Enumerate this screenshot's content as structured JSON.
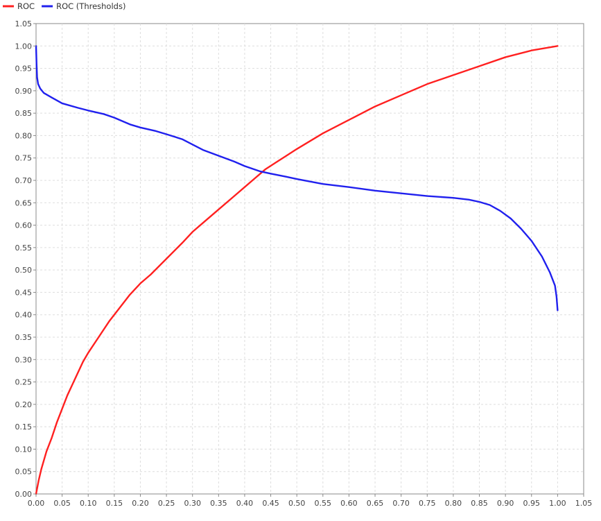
{
  "chart_data": {
    "type": "line",
    "title": "",
    "xlabel": "",
    "ylabel": "",
    "xlim": [
      0,
      1.05
    ],
    "ylim": [
      0,
      1.05
    ],
    "x_ticks": [
      "0.00",
      "0.05",
      "0.10",
      "0.15",
      "0.20",
      "0.25",
      "0.30",
      "0.35",
      "0.40",
      "0.45",
      "0.50",
      "0.55",
      "0.60",
      "0.65",
      "0.70",
      "0.75",
      "0.80",
      "0.85",
      "0.90",
      "0.95",
      "1.00",
      "1.05"
    ],
    "y_ticks": [
      "0.00",
      "0.05",
      "0.10",
      "0.15",
      "0.20",
      "0.25",
      "0.30",
      "0.35",
      "0.40",
      "0.45",
      "0.50",
      "0.55",
      "0.60",
      "0.65",
      "0.70",
      "0.75",
      "0.80",
      "0.85",
      "0.90",
      "0.95",
      "1.00",
      "1.05"
    ],
    "grid": true,
    "legend_position": "top-left",
    "series": [
      {
        "name": "ROC",
        "color": "#ff2020",
        "points": [
          [
            0.0,
            0.0
          ],
          [
            0.005,
            0.03
          ],
          [
            0.01,
            0.055
          ],
          [
            0.02,
            0.095
          ],
          [
            0.03,
            0.125
          ],
          [
            0.04,
            0.16
          ],
          [
            0.05,
            0.19
          ],
          [
            0.06,
            0.22
          ],
          [
            0.07,
            0.245
          ],
          [
            0.08,
            0.27
          ],
          [
            0.09,
            0.295
          ],
          [
            0.1,
            0.315
          ],
          [
            0.12,
            0.35
          ],
          [
            0.14,
            0.385
          ],
          [
            0.16,
            0.415
          ],
          [
            0.18,
            0.445
          ],
          [
            0.2,
            0.47
          ],
          [
            0.22,
            0.49
          ],
          [
            0.25,
            0.525
          ],
          [
            0.28,
            0.56
          ],
          [
            0.3,
            0.585
          ],
          [
            0.32,
            0.605
          ],
          [
            0.35,
            0.635
          ],
          [
            0.38,
            0.665
          ],
          [
            0.4,
            0.685
          ],
          [
            0.42,
            0.705
          ],
          [
            0.44,
            0.725
          ],
          [
            0.46,
            0.74
          ],
          [
            0.48,
            0.755
          ],
          [
            0.5,
            0.77
          ],
          [
            0.55,
            0.805
          ],
          [
            0.6,
            0.835
          ],
          [
            0.65,
            0.865
          ],
          [
            0.7,
            0.89
          ],
          [
            0.75,
            0.915
          ],
          [
            0.8,
            0.935
          ],
          [
            0.85,
            0.955
          ],
          [
            0.9,
            0.975
          ],
          [
            0.95,
            0.99
          ],
          [
            1.0,
            1.0
          ]
        ]
      },
      {
        "name": "ROC (Thresholds)",
        "color": "#2020ee",
        "points": [
          [
            0.0,
            1.0
          ],
          [
            0.001,
            0.96
          ],
          [
            0.002,
            0.93
          ],
          [
            0.004,
            0.915
          ],
          [
            0.008,
            0.905
          ],
          [
            0.015,
            0.895
          ],
          [
            0.03,
            0.885
          ],
          [
            0.05,
            0.872
          ],
          [
            0.08,
            0.862
          ],
          [
            0.1,
            0.856
          ],
          [
            0.13,
            0.848
          ],
          [
            0.15,
            0.84
          ],
          [
            0.18,
            0.825
          ],
          [
            0.2,
            0.818
          ],
          [
            0.23,
            0.81
          ],
          [
            0.25,
            0.803
          ],
          [
            0.28,
            0.792
          ],
          [
            0.3,
            0.78
          ],
          [
            0.32,
            0.768
          ],
          [
            0.35,
            0.755
          ],
          [
            0.38,
            0.742
          ],
          [
            0.4,
            0.732
          ],
          [
            0.43,
            0.72
          ],
          [
            0.45,
            0.715
          ],
          [
            0.48,
            0.708
          ],
          [
            0.5,
            0.703
          ],
          [
            0.55,
            0.692
          ],
          [
            0.6,
            0.685
          ],
          [
            0.65,
            0.677
          ],
          [
            0.7,
            0.671
          ],
          [
            0.75,
            0.665
          ],
          [
            0.8,
            0.661
          ],
          [
            0.83,
            0.657
          ],
          [
            0.85,
            0.652
          ],
          [
            0.87,
            0.645
          ],
          [
            0.89,
            0.632
          ],
          [
            0.91,
            0.615
          ],
          [
            0.93,
            0.592
          ],
          [
            0.95,
            0.565
          ],
          [
            0.97,
            0.53
          ],
          [
            0.985,
            0.495
          ],
          [
            0.995,
            0.465
          ],
          [
            0.998,
            0.44
          ],
          [
            1.0,
            0.41
          ]
        ]
      }
    ]
  }
}
